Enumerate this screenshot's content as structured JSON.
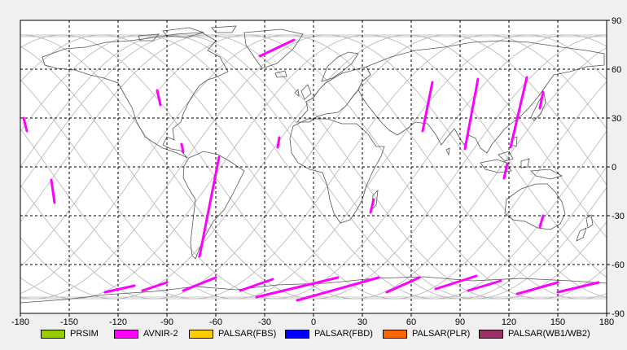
{
  "map": {
    "x_ticks": [
      "-180",
      "-150",
      "-120",
      "-90",
      "-60",
      "-30",
      "0",
      "30",
      "60",
      "90",
      "120",
      "150",
      "180"
    ],
    "y_ticks": [
      "90",
      "60",
      "30",
      "0",
      "-30",
      "-60",
      "-90"
    ],
    "lon_range": [
      -180,
      180
    ],
    "lat_range": [
      -90,
      90
    ],
    "grid": "dashed every 30°",
    "colors": {
      "grid": "#000000",
      "coast": "#555555",
      "orbit": "#b4b4b4",
      "frame": "#000000",
      "background": "#ffffff"
    }
  },
  "legend": [
    {
      "label": "PRSIM",
      "color": "#99cc00"
    },
    {
      "label": "AVNIR-2",
      "color": "#ff00ff"
    },
    {
      "label": "PALSAR(FBS)",
      "color": "#ffcc00"
    },
    {
      "label": "PALSAR(FBD)",
      "color": "#0000ff"
    },
    {
      "label": "PALSAR(PLR)",
      "color": "#ff6600"
    },
    {
      "label": "PALSAR(WB1/WB2)",
      "color": "#993366"
    }
  ],
  "swaths": {
    "sensor": "AVNIR-2",
    "color": "#ff00ff",
    "segments": [
      [
        [
          -178,
          30
        ],
        [
          -176,
          22
        ]
      ],
      [
        [
          -161,
          -8
        ],
        [
          -159,
          -22
        ]
      ],
      [
        [
          -96,
          47
        ],
        [
          -94,
          38
        ]
      ],
      [
        [
          -81,
          14
        ],
        [
          -80,
          9
        ]
      ],
      [
        [
          -58,
          6
        ],
        [
          -70,
          -55
        ]
      ],
      [
        [
          -21,
          18
        ],
        [
          -22,
          12
        ]
      ],
      [
        [
          -33,
          68
        ],
        [
          -12,
          78
        ]
      ],
      [
        [
          73,
          52
        ],
        [
          67,
          22
        ]
      ],
      [
        [
          101,
          54
        ],
        [
          93,
          11
        ]
      ],
      [
        [
          131,
          55
        ],
        [
          121,
          12
        ]
      ],
      [
        [
          141,
          46
        ],
        [
          139,
          36
        ]
      ],
      [
        [
          119,
          2
        ],
        [
          117,
          -7
        ]
      ],
      [
        [
          37,
          -20
        ],
        [
          35,
          -28
        ]
      ],
      [
        [
          141,
          -30
        ],
        [
          139,
          -37
        ]
      ],
      [
        [
          -128,
          -77
        ],
        [
          -110,
          -73
        ]
      ],
      [
        [
          -105,
          -76
        ],
        [
          -90,
          -71
        ]
      ],
      [
        [
          -80,
          -76
        ],
        [
          -60,
          -68
        ]
      ],
      [
        [
          -45,
          -76
        ],
        [
          -25,
          -69
        ]
      ],
      [
        [
          -35,
          -80
        ],
        [
          15,
          -68
        ]
      ],
      [
        [
          -10,
          -82
        ],
        [
          40,
          -68
        ]
      ],
      [
        [
          45,
          -77
        ],
        [
          65,
          -68
        ]
      ],
      [
        [
          75,
          -75
        ],
        [
          100,
          -67
        ]
      ],
      [
        [
          95,
          -76
        ],
        [
          115,
          -70
        ]
      ],
      [
        [
          125,
          -78
        ],
        [
          150,
          -71
        ]
      ],
      [
        [
          150,
          -77
        ],
        [
          175,
          -71
        ]
      ]
    ]
  }
}
